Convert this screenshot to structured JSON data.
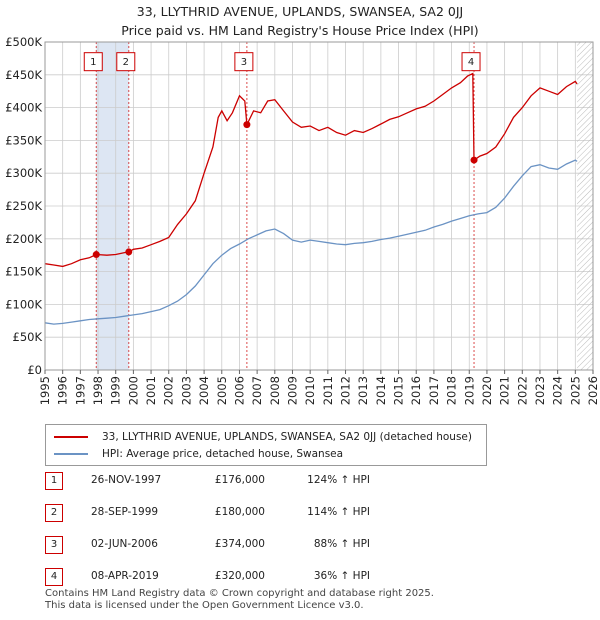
{
  "chart_data": {
    "type": "line",
    "title": "33, LLYTHRID AVENUE, UPLANDS, SWANSEA, SA2 0JJ",
    "subtitle": "Price paid vs. HM Land Registry's House Price Index (HPI)",
    "xlim": [
      1995,
      2026
    ],
    "ylim": [
      0,
      500000
    ],
    "x_ticks": [
      "1995",
      "1996",
      "1997",
      "1998",
      "1999",
      "2000",
      "2001",
      "2002",
      "2003",
      "2004",
      "2005",
      "2006",
      "2007",
      "2008",
      "2009",
      "2010",
      "2011",
      "2012",
      "2013",
      "2014",
      "2015",
      "2016",
      "2017",
      "2018",
      "2019",
      "2020",
      "2021",
      "2022",
      "2023",
      "2024",
      "2025",
      "2026"
    ],
    "y_ticks": [
      {
        "value": 0,
        "label": "£0"
      },
      {
        "value": 50000,
        "label": "£50K"
      },
      {
        "value": 100000,
        "label": "£100K"
      },
      {
        "value": 150000,
        "label": "£150K"
      },
      {
        "value": 200000,
        "label": "£200K"
      },
      {
        "value": 250000,
        "label": "£250K"
      },
      {
        "value": 300000,
        "label": "£300K"
      },
      {
        "value": 350000,
        "label": "£350K"
      },
      {
        "value": 400000,
        "label": "£400K"
      },
      {
        "value": 450000,
        "label": "£450K"
      },
      {
        "value": 500000,
        "label": "£500K"
      }
    ],
    "grid": true,
    "future_hatch_from": 2025.1,
    "series": [
      {
        "name": "33, LLYTHRID AVENUE, UPLANDS, SWANSEA, SA2 0JJ (detached house)",
        "color": "#cc0000",
        "points": [
          [
            1995.0,
            162000
          ],
          [
            1995.5,
            160000
          ],
          [
            1996.0,
            158000
          ],
          [
            1996.5,
            162000
          ],
          [
            1997.0,
            168000
          ],
          [
            1997.5,
            171000
          ],
          [
            1997.9,
            176000
          ],
          [
            1998.5,
            175000
          ],
          [
            1999.0,
            176000
          ],
          [
            1999.5,
            179000
          ],
          [
            1999.74,
            180000
          ],
          [
            2000.0,
            184000
          ],
          [
            2000.5,
            186000
          ],
          [
            2001.0,
            191000
          ],
          [
            2001.5,
            196000
          ],
          [
            2002.0,
            202000
          ],
          [
            2002.5,
            222000
          ],
          [
            2003.0,
            238000
          ],
          [
            2003.5,
            258000
          ],
          [
            2004.0,
            300000
          ],
          [
            2004.5,
            340000
          ],
          [
            2004.8,
            385000
          ],
          [
            2005.0,
            395000
          ],
          [
            2005.3,
            380000
          ],
          [
            2005.6,
            392000
          ],
          [
            2006.0,
            418000
          ],
          [
            2006.3,
            410000
          ],
          [
            2006.42,
            374000
          ],
          [
            2006.8,
            395000
          ],
          [
            2007.2,
            392000
          ],
          [
            2007.6,
            410000
          ],
          [
            2008.0,
            412000
          ],
          [
            2008.5,
            395000
          ],
          [
            2009.0,
            378000
          ],
          [
            2009.5,
            370000
          ],
          [
            2010.0,
            372000
          ],
          [
            2010.5,
            365000
          ],
          [
            2011.0,
            370000
          ],
          [
            2011.5,
            362000
          ],
          [
            2012.0,
            358000
          ],
          [
            2012.5,
            365000
          ],
          [
            2013.0,
            362000
          ],
          [
            2013.5,
            368000
          ],
          [
            2014.0,
            375000
          ],
          [
            2014.5,
            382000
          ],
          [
            2015.0,
            386000
          ],
          [
            2015.5,
            392000
          ],
          [
            2016.0,
            398000
          ],
          [
            2016.5,
            402000
          ],
          [
            2017.0,
            410000
          ],
          [
            2017.5,
            420000
          ],
          [
            2018.0,
            430000
          ],
          [
            2018.5,
            438000
          ],
          [
            2018.9,
            448000
          ],
          [
            2019.2,
            452000
          ],
          [
            2019.27,
            320000
          ],
          [
            2019.6,
            326000
          ],
          [
            2020.0,
            330000
          ],
          [
            2020.5,
            340000
          ],
          [
            2021.0,
            360000
          ],
          [
            2021.5,
            385000
          ],
          [
            2022.0,
            400000
          ],
          [
            2022.5,
            418000
          ],
          [
            2023.0,
            430000
          ],
          [
            2023.5,
            425000
          ],
          [
            2024.0,
            420000
          ],
          [
            2024.5,
            432000
          ],
          [
            2025.0,
            440000
          ],
          [
            2025.1,
            436000
          ]
        ]
      },
      {
        "name": "HPI: Average price, detached house, Swansea",
        "color": "#6b93c4",
        "points": [
          [
            1995.0,
            72000
          ],
          [
            1995.5,
            70000
          ],
          [
            1996.0,
            71000
          ],
          [
            1996.5,
            73000
          ],
          [
            1997.0,
            75000
          ],
          [
            1997.5,
            77000
          ],
          [
            1998.0,
            78000
          ],
          [
            1998.5,
            79000
          ],
          [
            1999.0,
            80000
          ],
          [
            1999.5,
            82000
          ],
          [
            2000.0,
            84000
          ],
          [
            2000.5,
            86000
          ],
          [
            2001.0,
            89000
          ],
          [
            2001.5,
            92000
          ],
          [
            2002.0,
            98000
          ],
          [
            2002.5,
            105000
          ],
          [
            2003.0,
            115000
          ],
          [
            2003.5,
            128000
          ],
          [
            2004.0,
            145000
          ],
          [
            2004.5,
            162000
          ],
          [
            2005.0,
            175000
          ],
          [
            2005.5,
            185000
          ],
          [
            2006.0,
            192000
          ],
          [
            2006.5,
            200000
          ],
          [
            2007.0,
            206000
          ],
          [
            2007.5,
            212000
          ],
          [
            2008.0,
            215000
          ],
          [
            2008.5,
            208000
          ],
          [
            2009.0,
            198000
          ],
          [
            2009.5,
            195000
          ],
          [
            2010.0,
            198000
          ],
          [
            2010.5,
            196000
          ],
          [
            2011.0,
            194000
          ],
          [
            2011.5,
            192000
          ],
          [
            2012.0,
            191000
          ],
          [
            2012.5,
            193000
          ],
          [
            2013.0,
            194000
          ],
          [
            2013.5,
            196000
          ],
          [
            2014.0,
            199000
          ],
          [
            2014.5,
            201000
          ],
          [
            2015.0,
            204000
          ],
          [
            2015.5,
            207000
          ],
          [
            2016.0,
            210000
          ],
          [
            2016.5,
            213000
          ],
          [
            2017.0,
            218000
          ],
          [
            2017.5,
            222000
          ],
          [
            2018.0,
            227000
          ],
          [
            2018.5,
            231000
          ],
          [
            2019.0,
            235000
          ],
          [
            2019.5,
            238000
          ],
          [
            2020.0,
            240000
          ],
          [
            2020.5,
            248000
          ],
          [
            2021.0,
            262000
          ],
          [
            2021.5,
            280000
          ],
          [
            2022.0,
            296000
          ],
          [
            2022.5,
            310000
          ],
          [
            2023.0,
            313000
          ],
          [
            2023.5,
            308000
          ],
          [
            2024.0,
            306000
          ],
          [
            2024.5,
            314000
          ],
          [
            2025.0,
            320000
          ],
          [
            2025.1,
            318000
          ]
        ]
      }
    ],
    "sales": [
      {
        "id": "1",
        "x": 1997.9,
        "price": 176000
      },
      {
        "id": "2",
        "x": 1999.74,
        "price": 180000
      },
      {
        "id": "3",
        "x": 2006.42,
        "price": 374000
      },
      {
        "id": "4",
        "x": 2019.27,
        "price": 320000
      }
    ],
    "label_box_value": 470000
  },
  "page": {
    "title_line1": "33, LLYTHRID AVENUE, UPLANDS, SWANSEA, SA2 0JJ",
    "title_line2": "Price paid vs. HM Land Registry's House Price Index (HPI)"
  },
  "legend": {
    "property": "33, LLYTHRID AVENUE, UPLANDS, SWANSEA, SA2 0JJ (detached house)",
    "hpi": "HPI: Average price, detached house, Swansea"
  },
  "sales_table": [
    {
      "id": "1",
      "date": "26-NOV-1997",
      "price": "£176,000",
      "hpi": "124% ↑ HPI"
    },
    {
      "id": "2",
      "date": "28-SEP-1999",
      "price": "£180,000",
      "hpi": "114% ↑ HPI"
    },
    {
      "id": "3",
      "date": "02-JUN-2006",
      "price": "£374,000",
      "hpi": "88% ↑ HPI"
    },
    {
      "id": "4",
      "date": "08-APR-2019",
      "price": "£320,000",
      "hpi": "36% ↑ HPI"
    }
  ],
  "footer": {
    "line1": "Contains HM Land Registry data © Crown copyright and database right 2025.",
    "line2": "This data is licensed under the Open Government Licence v3.0."
  },
  "colors": {
    "property_line": "#cc0000",
    "hpi_line": "#6b93c4",
    "sale_band": "#dde6f3",
    "grid": "#cccccc"
  }
}
